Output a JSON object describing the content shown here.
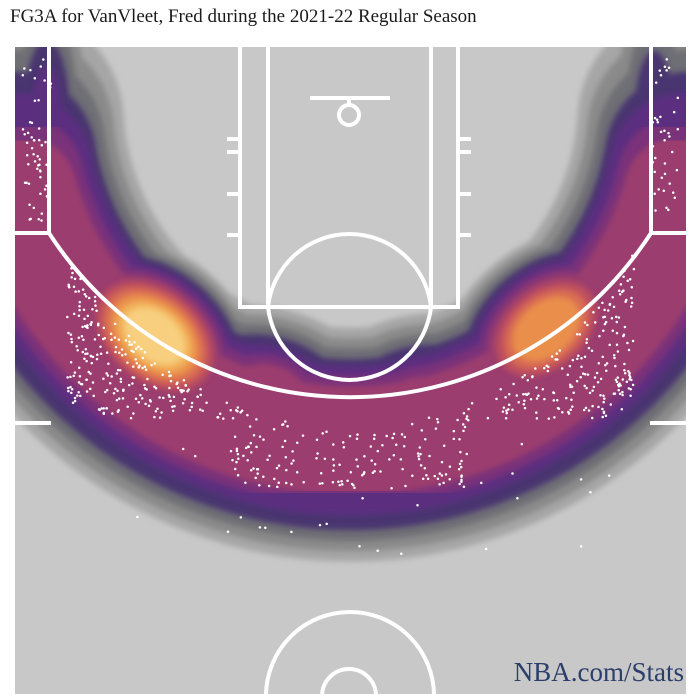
{
  "title": "FG3A for VanVleet, Fred during the 2021-22 Regular Season",
  "source": "NBA.com/Stats",
  "chart_data": {
    "type": "heatmap",
    "subtype": "shot-density-with-scatter",
    "x_units": "feet from basket center (left negative)",
    "y_units": "feet from baseline",
    "xlim": [
      -25,
      25
    ],
    "ylim": [
      0,
      47
    ],
    "orientation": "baseline-at-top",
    "density_hotspots": [
      {
        "x": -14.5,
        "y": 21,
        "weight": 1.0
      },
      {
        "x": 14.5,
        "y": 20.5,
        "weight": 0.85
      },
      {
        "x": -6,
        "y": 25,
        "weight": 0.55
      },
      {
        "x": 5,
        "y": 25.5,
        "weight": 0.5
      },
      {
        "x": 0,
        "y": 26.5,
        "weight": 0.45
      },
      {
        "x": -22.5,
        "y": 5,
        "weight": 0.35
      },
      {
        "x": 22.5,
        "y": 5,
        "weight": 0.3
      }
    ],
    "shot_clusters": [
      {
        "region": "left wing",
        "x_range": [
          -21,
          -8
        ],
        "y_range": [
          13,
          27
        ],
        "count": 240
      },
      {
        "region": "right wing",
        "x_range": [
          8,
          21
        ],
        "y_range": [
          14,
          27
        ],
        "count": 200
      },
      {
        "region": "top of key",
        "x_range": [
          -9,
          9
        ],
        "y_range": [
          22,
          32
        ],
        "count": 160
      },
      {
        "region": "left corner",
        "x_range": [
          -24.3,
          -22.2
        ],
        "y_range": [
          1,
          13
        ],
        "count": 55
      },
      {
        "region": "right corner",
        "x_range": [
          22.2,
          24.3
        ],
        "y_range": [
          1,
          12
        ],
        "count": 40
      },
      {
        "region": "deep",
        "x_range": [
          -20,
          20
        ],
        "y_range": [
          28,
          37
        ],
        "count": 35
      }
    ],
    "color_scale": [
      "#c8c8c8",
      "#a6a6a6",
      "#8a8a8a",
      "#6e6e74",
      "#4a3470",
      "#5c2f80",
      "#7a3279",
      "#9b3c6e",
      "#bd4f5f",
      "#d86c52",
      "#e98e4c",
      "#f2b05a",
      "#f7cf7e"
    ],
    "court_color": "#c8c8c8",
    "line_color": "#ffffff",
    "marker_color": "#ffffff"
  }
}
